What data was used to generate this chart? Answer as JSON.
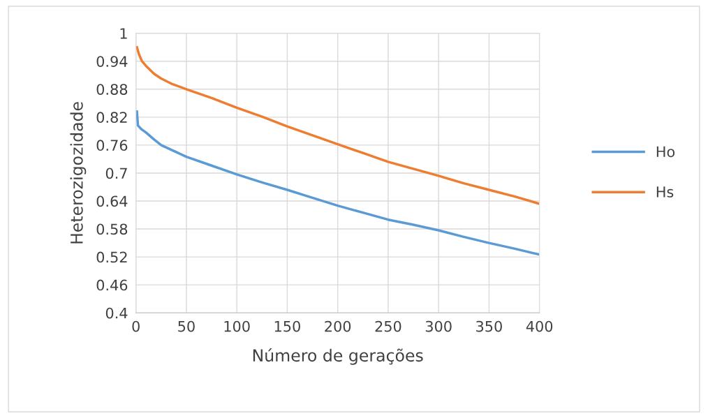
{
  "chart_data": {
    "type": "line",
    "xlabel": "Número de gerações",
    "ylabel": "Heterozigozidade",
    "xlim": [
      0,
      400
    ],
    "xticks": [
      0,
      50,
      100,
      150,
      200,
      250,
      300,
      350,
      400
    ],
    "ylim": [
      0.4,
      1
    ],
    "yticks": [
      0.4,
      0.46,
      0.52,
      0.58,
      0.64,
      0.7,
      0.76,
      0.82,
      0.88,
      0.94,
      1
    ],
    "grid": true,
    "legend": "right",
    "marker": "none",
    "line_style": "solid",
    "series": [
      {
        "name": "Ho",
        "color": "#5b9bd5",
        "x": [
          1,
          2,
          5,
          10,
          18,
          25,
          35,
          50,
          75,
          100,
          125,
          150,
          175,
          200,
          225,
          250,
          275,
          300,
          325,
          350,
          375,
          400
        ],
        "values": [
          0.832,
          0.802,
          0.795,
          0.787,
          0.772,
          0.76,
          0.75,
          0.735,
          0.716,
          0.697,
          0.68,
          0.664,
          0.647,
          0.63,
          0.615,
          0.6,
          0.589,
          0.577,
          0.563,
          0.55,
          0.538,
          0.525
        ]
      },
      {
        "name": "Hs",
        "color": "#ed7d31",
        "x": [
          1,
          3,
          6,
          10,
          18,
          25,
          35,
          50,
          75,
          100,
          125,
          150,
          175,
          200,
          225,
          250,
          275,
          300,
          325,
          350,
          375,
          400
        ],
        "values": [
          0.97,
          0.955,
          0.94,
          0.93,
          0.913,
          0.903,
          0.892,
          0.88,
          0.861,
          0.84,
          0.821,
          0.8,
          0.781,
          0.762,
          0.743,
          0.724,
          0.709,
          0.694,
          0.678,
          0.664,
          0.65,
          0.634
        ]
      }
    ]
  }
}
